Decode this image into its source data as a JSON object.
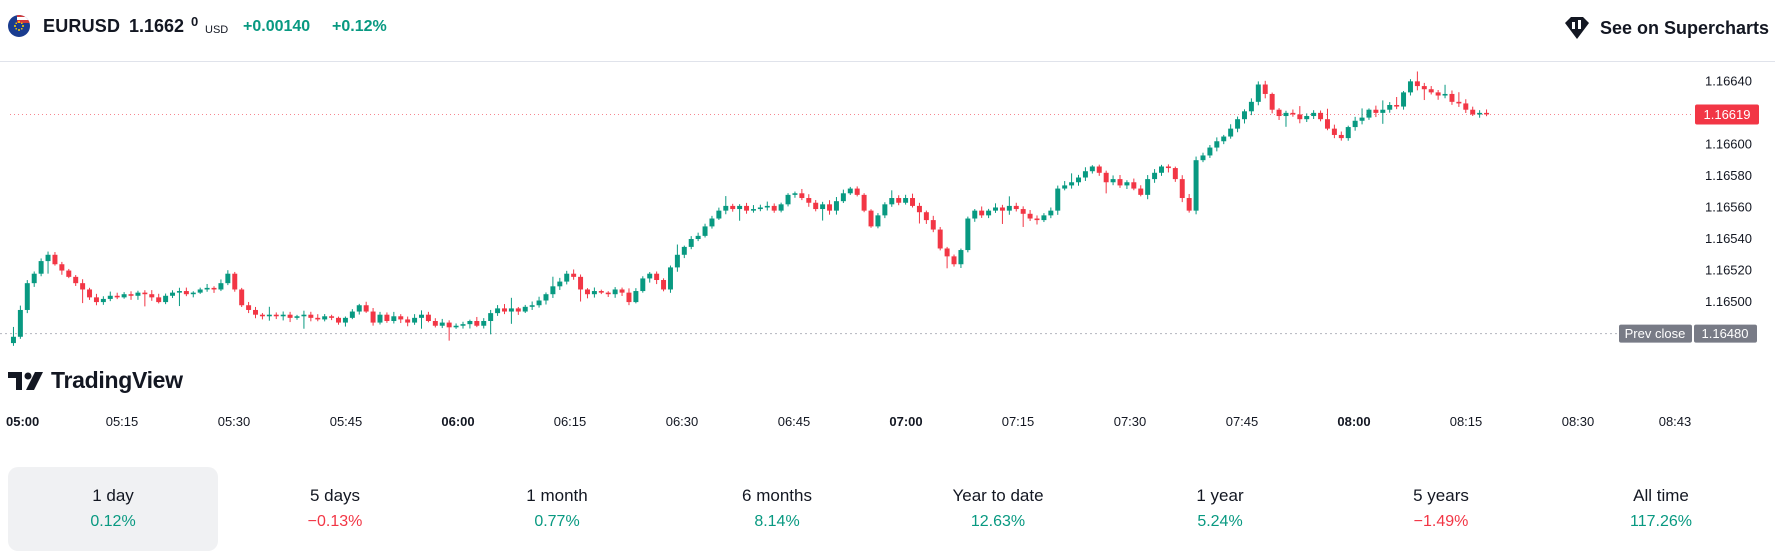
{
  "header": {
    "symbol": "EURUSD",
    "price_main": "1.1662",
    "price_sup": "0",
    "currency": "USD",
    "change": "+0.00140",
    "change_percent": "+0.12%",
    "see_on_label": "See on Supercharts"
  },
  "brand": {
    "logo_text": "TradingView"
  },
  "colors": {
    "up": "#089981",
    "down": "#f23645",
    "text": "#131722",
    "grid": "#e0e3eb",
    "label_gray": "#787b86"
  },
  "chart_data": {
    "type": "candlestick",
    "y_ticks": [
      "1.16640",
      "1.16619",
      "1.16600",
      "1.16580",
      "1.16560",
      "1.16540",
      "1.16520",
      "1.16500"
    ],
    "ylim": [
      1.16462,
      1.16651
    ],
    "x_ticks": [
      {
        "label": "05:00",
        "bold": true
      },
      {
        "label": "05:15",
        "bold": false
      },
      {
        "label": "05:30",
        "bold": false
      },
      {
        "label": "05:45",
        "bold": false
      },
      {
        "label": "06:00",
        "bold": true
      },
      {
        "label": "06:15",
        "bold": false
      },
      {
        "label": "06:30",
        "bold": false
      },
      {
        "label": "06:45",
        "bold": false
      },
      {
        "label": "07:00",
        "bold": true
      },
      {
        "label": "07:15",
        "bold": false
      },
      {
        "label": "07:30",
        "bold": false
      },
      {
        "label": "07:45",
        "bold": false
      },
      {
        "label": "08:00",
        "bold": true
      },
      {
        "label": "08:15",
        "bold": false
      },
      {
        "label": "08:30",
        "bold": false
      },
      {
        "label": "08:43",
        "bold": false
      }
    ],
    "current_price": {
      "label": "1.16619",
      "value": 1.16619
    },
    "prev_close": {
      "label": "Prev close",
      "value_label": "1.16480",
      "value": 1.1648
    },
    "closes": [
      1.16478,
      1.16495,
      1.16512,
      1.16518,
      1.16526,
      1.1653,
      1.16524,
      1.1652,
      1.16516,
      1.16512,
      1.16508,
      1.16503,
      1.165,
      1.16502,
      1.16504,
      1.16503,
      1.16505,
      1.16504,
      1.16506,
      1.16505,
      1.16503,
      1.165,
      1.16504,
      1.16506,
      1.16507,
      1.16505,
      1.16506,
      1.16508,
      1.16509,
      1.16508,
      1.16512,
      1.16518,
      1.16508,
      1.16498,
      1.16495,
      1.16492,
      1.16491,
      1.16492,
      1.16491,
      1.16492,
      1.1649,
      1.16491,
      1.16492,
      1.1649,
      1.16489,
      1.16491,
      1.1649,
      1.16487,
      1.1649,
      1.16494,
      1.16498,
      1.16494,
      1.16487,
      1.16492,
      1.16488,
      1.16491,
      1.16489,
      1.16487,
      1.1649,
      1.16492,
      1.16488,
      1.16485,
      1.16487,
      1.16484,
      1.16485,
      1.16486,
      1.16488,
      1.16485,
      1.16488,
      1.16493,
      1.16496,
      1.16494,
      1.16496,
      1.16494,
      1.16497,
      1.16498,
      1.16501,
      1.16505,
      1.1651,
      1.16513,
      1.16518,
      1.16516,
      1.16508,
      1.16505,
      1.16507,
      1.16506,
      1.16505,
      1.16508,
      1.16506,
      1.165,
      1.16507,
      1.16515,
      1.16518,
      1.16514,
      1.16508,
      1.16522,
      1.1653,
      1.16535,
      1.1654,
      1.16542,
      1.16548,
      1.16553,
      1.16558,
      1.16561,
      1.16559,
      1.16561,
      1.16558,
      1.16559,
      1.1656,
      1.16561,
      1.16558,
      1.16562,
      1.16568,
      1.16569,
      1.16566,
      1.16563,
      1.16559,
      1.16562,
      1.16558,
      1.16564,
      1.16569,
      1.16572,
      1.16568,
      1.16558,
      1.16548,
      1.16555,
      1.16562,
      1.16566,
      1.16563,
      1.16566,
      1.16561,
      1.16557,
      1.16552,
      1.16546,
      1.16534,
      1.16529,
      1.16524,
      1.16533,
      1.16553,
      1.16558,
      1.16555,
      1.16558,
      1.1656,
      1.16558,
      1.16561,
      1.16559,
      1.16556,
      1.16553,
      1.16552,
      1.16555,
      1.16558,
      1.16572,
      1.16574,
      1.16576,
      1.16579,
      1.16583,
      1.16586,
      1.16582,
      1.16576,
      1.16578,
      1.16574,
      1.16576,
      1.16572,
      1.16568,
      1.16578,
      1.16582,
      1.16586,
      1.16585,
      1.16578,
      1.16566,
      1.16558,
      1.1659,
      1.16593,
      1.16598,
      1.16602,
      1.16605,
      1.1661,
      1.16616,
      1.16621,
      1.16627,
      1.16638,
      1.16632,
      1.16622,
      1.16618,
      1.1662,
      1.16619,
      1.16616,
      1.16618,
      1.1662,
      1.16616,
      1.1661,
      1.16606,
      1.16604,
      1.16611,
      1.16615,
      1.16617,
      1.16622,
      1.1662,
      1.16622,
      1.16625,
      1.16624,
      1.16633,
      1.1664,
      1.16637,
      1.16635,
      1.16633,
      1.16631,
      1.16632,
      1.16627,
      1.16626,
      1.16622,
      1.16619,
      1.1662,
      1.16619
    ]
  },
  "periods": [
    {
      "label": "1 day",
      "value": "0.12%",
      "dir": "up",
      "active": true
    },
    {
      "label": "5 days",
      "value": "−0.13%",
      "dir": "down",
      "active": false
    },
    {
      "label": "1 month",
      "value": "0.77%",
      "dir": "up",
      "active": false
    },
    {
      "label": "6 months",
      "value": "8.14%",
      "dir": "up",
      "active": false
    },
    {
      "label": "Year to date",
      "value": "12.63%",
      "dir": "up",
      "active": false
    },
    {
      "label": "1 year",
      "value": "5.24%",
      "dir": "up",
      "active": false
    },
    {
      "label": "5 years",
      "value": "−1.49%",
      "dir": "down",
      "active": false
    },
    {
      "label": "All time",
      "value": "117.26%",
      "dir": "up",
      "active": false
    }
  ]
}
